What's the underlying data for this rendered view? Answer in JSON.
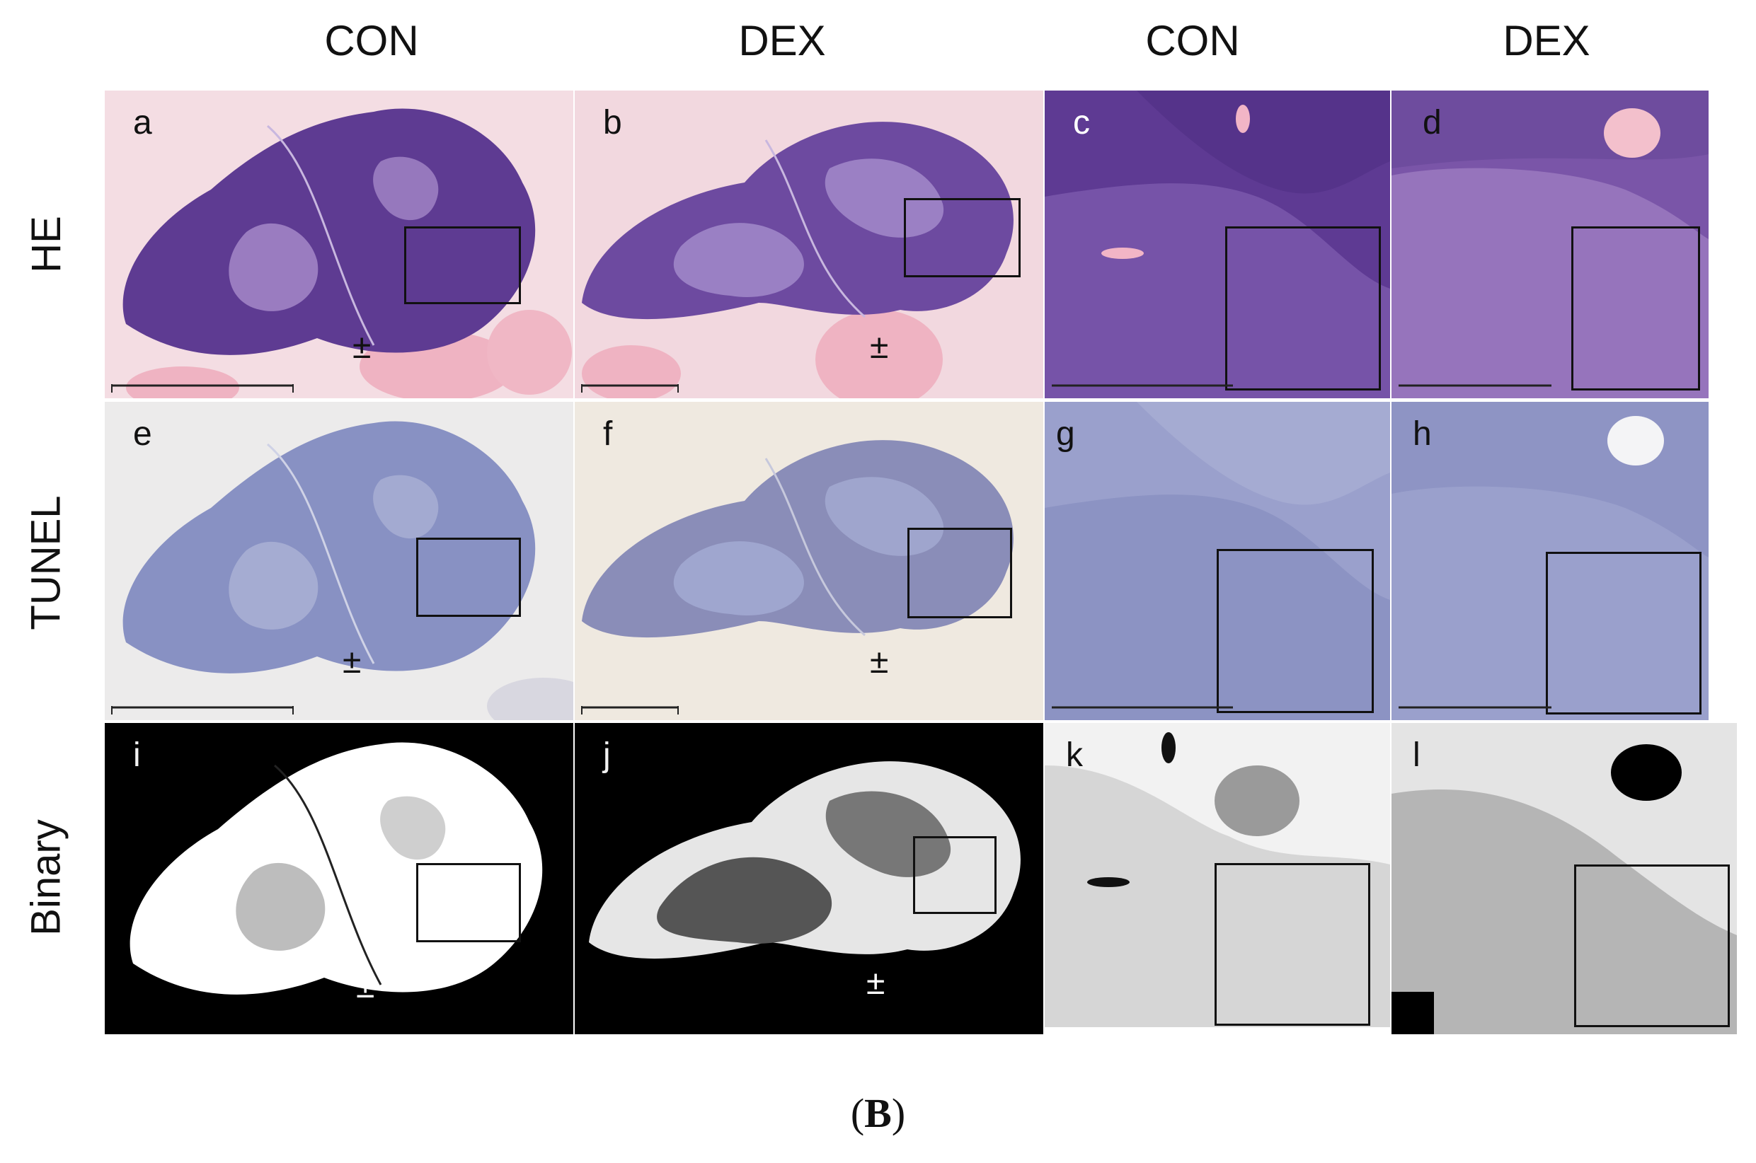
{
  "columns": [
    "CON",
    "DEX",
    "CON",
    "DEX"
  ],
  "rows": [
    "HE",
    "TUNEL",
    "Binary"
  ],
  "panels": {
    "a": "a",
    "b": "b",
    "c": "c",
    "d": "d",
    "e": "e",
    "f": "f",
    "g": "g",
    "h": "h",
    "i": "i",
    "j": "j",
    "k": "k",
    "l": "l"
  },
  "marker": "±",
  "figure_label": {
    "open": "(",
    "letter": "B",
    "close": ")"
  },
  "colors": {
    "he_tissue": "#6a4a9c",
    "he_background": "#f3d9e0",
    "tunel_tissue": "#8a93c4",
    "tunel_background": "#ecebeb",
    "binary_background": "#000000",
    "binary_tissue": "#ffffff"
  }
}
